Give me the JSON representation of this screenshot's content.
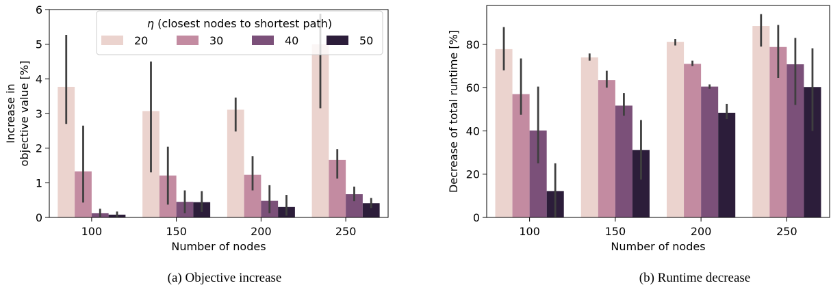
{
  "palette": [
    "#ebd3ce",
    "#c38ba1",
    "#7b5079",
    "#2c1d3a"
  ],
  "legend": {
    "title_symbol": "η",
    "title_rest": " (closest nodes to shortest path)",
    "labels": [
      "20",
      "30",
      "40",
      "50"
    ]
  },
  "chart_data": [
    {
      "type": "bar",
      "panel": "a",
      "categories": [
        "100",
        "150",
        "200",
        "250"
      ],
      "series": [
        {
          "name": "20",
          "values": [
            3.77,
            3.07,
            3.11,
            5.0
          ],
          "err_low": [
            2.7,
            1.3,
            2.48,
            3.15
          ],
          "err_high": [
            5.27,
            4.5,
            3.46,
            5.88
          ]
        },
        {
          "name": "30",
          "values": [
            1.33,
            1.21,
            1.23,
            1.66
          ],
          "err_low": [
            0.43,
            0.37,
            0.78,
            1.12
          ],
          "err_high": [
            2.65,
            2.04,
            1.77,
            1.97
          ]
        },
        {
          "name": "40",
          "values": [
            0.12,
            0.45,
            0.48,
            0.67
          ],
          "err_low": [
            0.02,
            0.12,
            0.12,
            0.47
          ],
          "err_high": [
            0.25,
            0.78,
            0.93,
            0.89
          ]
        },
        {
          "name": "50",
          "values": [
            0.08,
            0.44,
            0.3,
            0.41
          ],
          "err_low": [
            0.01,
            0.16,
            0.05,
            0.27
          ],
          "err_high": [
            0.17,
            0.76,
            0.65,
            0.56
          ]
        }
      ],
      "xlabel": "Number of nodes",
      "ylabel": [
        "Increase in",
        "objective value [%]"
      ],
      "ylim": [
        0,
        6
      ],
      "yticks": [
        0,
        1,
        2,
        3,
        4,
        5,
        6
      ],
      "grid": false,
      "legend_position": "top-right",
      "caption": "(a) Objective increase"
    },
    {
      "type": "bar",
      "panel": "b",
      "categories": [
        "100",
        "150",
        "200",
        "250"
      ],
      "series": [
        {
          "name": "20",
          "values": [
            77.8,
            74.0,
            81.2,
            88.5
          ],
          "err_low": [
            68.0,
            72.5,
            79.5,
            79.0
          ],
          "err_high": [
            88.0,
            75.8,
            82.5,
            94.0
          ]
        },
        {
          "name": "30",
          "values": [
            57.0,
            63.5,
            71.0,
            78.8
          ],
          "err_low": [
            47.5,
            60.0,
            70.0,
            64.5
          ],
          "err_high": [
            73.5,
            67.8,
            72.5,
            89.0
          ]
        },
        {
          "name": "40",
          "values": [
            40.2,
            51.7,
            60.5,
            70.8
          ],
          "err_low": [
            25.0,
            47.0,
            59.5,
            52.0
          ],
          "err_high": [
            60.5,
            57.5,
            61.5,
            83.0
          ]
        },
        {
          "name": "50",
          "values": [
            12.2,
            31.2,
            48.4,
            60.3
          ],
          "err_low": [
            0.0,
            17.5,
            45.5,
            40.0
          ],
          "err_high": [
            25.0,
            45.0,
            52.5,
            78.2
          ]
        }
      ],
      "xlabel": "Number of nodes",
      "ylabel": [
        "Decrease of total runtime [%]"
      ],
      "ylim": [
        0,
        98
      ],
      "yticks": [
        0,
        20,
        40,
        60,
        80
      ],
      "grid": false,
      "legend_position": "none",
      "caption": "(b) Runtime decrease"
    }
  ]
}
